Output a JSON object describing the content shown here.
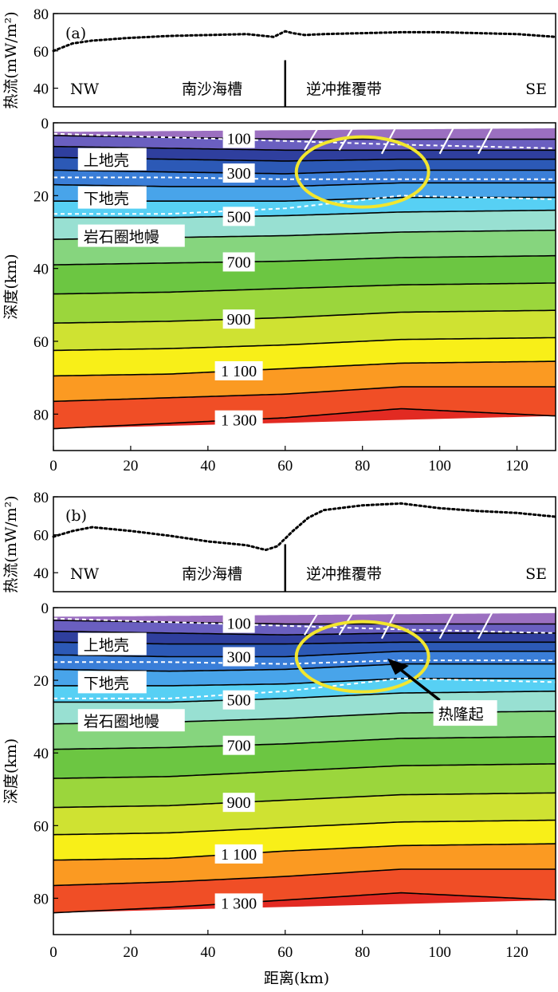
{
  "chart_data": [
    {
      "type": "heatmap",
      "panel_label": "(a)",
      "heat_flow": {
        "ylabel": "热流(mW/m²)",
        "ylim": [
          30,
          80
        ],
        "yticks": [
          40,
          60,
          80
        ],
        "x": [
          0,
          5,
          10,
          20,
          30,
          40,
          50,
          57,
          60,
          62,
          65,
          70,
          80,
          90,
          100,
          110,
          120,
          130
        ],
        "values": [
          60,
          64,
          65.5,
          67,
          68,
          68.5,
          69,
          67.5,
          70.5,
          69.5,
          68.5,
          69,
          69.5,
          70,
          70,
          69.5,
          69,
          67.5
        ],
        "labels": {
          "nw": "NW",
          "left_region": "南沙海槽",
          "right_region": "逆冲推覆带",
          "se": "SE"
        },
        "divider_x": 60
      },
      "section": {
        "ylabel": "深度(km)",
        "xlim": [
          0,
          130
        ],
        "ylim": [
          0,
          90
        ],
        "xticks": [
          0,
          20,
          40,
          60,
          80,
          100,
          120
        ],
        "yticks": [
          0,
          20,
          40,
          60,
          80
        ],
        "isotherms": [
          {
            "label": "100",
            "x": [
              0,
              30,
              60,
              90,
              130
            ],
            "depth": [
              3.5,
              4,
              4.5,
              4.5,
              4.5
            ],
            "label_x": 48
          },
          {
            "label": "",
            "x": [
              0,
              30,
              60,
              90,
              130
            ],
            "depth": [
              6.5,
              7,
              7.5,
              7.5,
              7.5
            ],
            "label_x": 0
          },
          {
            "label": "",
            "x": [
              0,
              30,
              60,
              90,
              130
            ],
            "depth": [
              9.5,
              10,
              10.5,
              10,
              10
            ],
            "label_x": 0
          },
          {
            "label": "300",
            "x": [
              0,
              30,
              60,
              90,
              130
            ],
            "depth": [
              13,
              13.5,
              14,
              13,
              13
            ],
            "label_x": 48
          },
          {
            "label": "",
            "x": [
              0,
              30,
              60,
              90,
              130
            ],
            "depth": [
              17,
              17.5,
              17.5,
              16.5,
              16.5
            ],
            "label_x": 0
          },
          {
            "label": "",
            "x": [
              0,
              30,
              60,
              90,
              130
            ],
            "depth": [
              21.5,
              21.5,
              21.5,
              20.5,
              20.5
            ],
            "label_x": 0
          },
          {
            "label": "500",
            "x": [
              0,
              30,
              60,
              90,
              130
            ],
            "depth": [
              26,
              26,
              25.5,
              24.5,
              24
            ],
            "label_x": 48
          },
          {
            "label": "",
            "x": [
              0,
              30,
              60,
              90,
              130
            ],
            "depth": [
              32,
              31.5,
              31,
              30,
              29.5
            ],
            "label_x": 0
          },
          {
            "label": "700",
            "x": [
              0,
              30,
              60,
              90,
              130
            ],
            "depth": [
              39,
              38.5,
              38,
              37,
              36.5
            ],
            "label_x": 48
          },
          {
            "label": "",
            "x": [
              0,
              30,
              60,
              90,
              130
            ],
            "depth": [
              47,
              46.5,
              45.5,
              44.5,
              44
            ],
            "label_x": 0
          },
          {
            "label": "900",
            "x": [
              0,
              30,
              60,
              90,
              130
            ],
            "depth": [
              55,
              54.5,
              53.5,
              52,
              51.5
            ],
            "label_x": 48
          },
          {
            "label": "",
            "x": [
              0,
              30,
              60,
              90,
              130
            ],
            "depth": [
              62.5,
              62,
              61,
              59.5,
              59
            ],
            "label_x": 0
          },
          {
            "label": "1 100",
            "x": [
              0,
              30,
              60,
              90,
              130
            ],
            "depth": [
              69.5,
              69,
              67.5,
              66,
              65.5
            ],
            "label_x": 48
          },
          {
            "label": "",
            "x": [
              0,
              30,
              60,
              90,
              130
            ],
            "depth": [
              76.5,
              75.5,
              74.5,
              72.5,
              72.5
            ],
            "label_x": 0
          },
          {
            "label": "1 300",
            "x": [
              0,
              30,
              60,
              90,
              130
            ],
            "depth": [
              84,
              82.5,
              81,
              78.5,
              80.5
            ],
            "label_x": 48
          }
        ],
        "bands": [
          "#9b6fc0",
          "#6a5fc0",
          "#2f3f9e",
          "#2c59b6",
          "#3a7ed8",
          "#48a4ea",
          "#57d0f4",
          "#98e0d2",
          "#86d57e",
          "#6cc642",
          "#9bd63c",
          "#cfe232",
          "#f8ef18",
          "#fb9a22",
          "#f04e26",
          "#e22a22"
        ],
        "boundaries": [
          {
            "x": [
              0,
              30,
              60,
              90,
              130
            ],
            "depth": [
              3,
              4,
              5,
              6,
              7
            ]
          },
          {
            "x": [
              0,
              30,
              60,
              90,
              130
            ],
            "depth": [
              15,
              15,
              15.5,
              15.5,
              15.5
            ]
          },
          {
            "x": [
              0,
              30,
              60,
              90,
              130
            ],
            "depth": [
              25,
              25,
              23.5,
              20,
              21
            ]
          }
        ],
        "layer_labels": [
          "上地壳",
          "下地壳",
          "岩石圈地幔"
        ]
      },
      "xlabel": ""
    },
    {
      "type": "heatmap",
      "panel_label": "(b)",
      "heat_flow": {
        "ylabel": "热流(mW/m²)",
        "ylim": [
          30,
          80
        ],
        "yticks": [
          40,
          60,
          80
        ],
        "x": [
          0,
          5,
          10,
          20,
          30,
          40,
          50,
          55,
          58,
          60,
          62,
          66,
          70,
          80,
          90,
          100,
          110,
          120,
          130
        ],
        "values": [
          59,
          62,
          64,
          62,
          59.5,
          56.5,
          54.5,
          52,
          54,
          58,
          62,
          69,
          73,
          75.5,
          76.5,
          74,
          72.5,
          71.5,
          69.5
        ],
        "labels": {
          "nw": "NW",
          "left_region": "南沙海槽",
          "right_region": "逆冲推覆带",
          "se": "SE"
        },
        "divider_x": 60
      },
      "section": {
        "ylabel": "深度(km)",
        "xlim": [
          0,
          130
        ],
        "ylim": [
          0,
          90
        ],
        "xticks": [
          0,
          20,
          40,
          60,
          80,
          100,
          120
        ],
        "yticks": [
          0,
          20,
          40,
          60,
          80
        ],
        "isotherms": [
          {
            "label": "100",
            "x": [
              0,
              30,
              60,
              90,
              130
            ],
            "depth": [
              3.5,
              4,
              4.5,
              4.5,
              4.5
            ],
            "label_x": 48
          },
          {
            "label": "",
            "x": [
              0,
              30,
              60,
              90,
              130
            ],
            "depth": [
              6.5,
              7,
              7.5,
              7,
              7
            ]
          },
          {
            "label": "",
            "x": [
              0,
              30,
              60,
              90,
              130
            ],
            "depth": [
              9.5,
              10,
              10,
              9.5,
              9.5
            ]
          },
          {
            "label": "300",
            "x": [
              0,
              30,
              60,
              90,
              130
            ],
            "depth": [
              13,
              13.5,
              13.5,
              12,
              12
            ],
            "label_x": 48
          },
          {
            "label": "",
            "x": [
              0,
              30,
              60,
              90,
              130
            ],
            "depth": [
              17,
              17.5,
              17,
              15.5,
              15.5
            ]
          },
          {
            "label": "",
            "x": [
              0,
              30,
              60,
              90,
              130
            ],
            "depth": [
              21.5,
              21.5,
              21,
              19.5,
              19.5
            ]
          },
          {
            "label": "500",
            "x": [
              0,
              30,
              60,
              90,
              130
            ],
            "depth": [
              26,
              26,
              25,
              23.5,
              23
            ],
            "label_x": 48
          },
          {
            "label": "",
            "x": [
              0,
              30,
              60,
              90,
              130
            ],
            "depth": [
              32,
              31.5,
              30.5,
              29,
              28.5
            ]
          },
          {
            "label": "700",
            "x": [
              0,
              30,
              60,
              90,
              130
            ],
            "depth": [
              39,
              38.5,
              37.5,
              36,
              35.5
            ],
            "label_x": 48
          },
          {
            "label": "",
            "x": [
              0,
              30,
              60,
              90,
              130
            ],
            "depth": [
              47,
              46.5,
              45,
              43.5,
              43
            ]
          },
          {
            "label": "900",
            "x": [
              0,
              30,
              60,
              90,
              130
            ],
            "depth": [
              55,
              54.5,
              53,
              51.5,
              51
            ],
            "label_x": 48
          },
          {
            "label": "",
            "x": [
              0,
              30,
              60,
              90,
              130
            ],
            "depth": [
              62.5,
              62,
              60.5,
              59,
              58.5
            ]
          },
          {
            "label": "1 100",
            "x": [
              0,
              30,
              60,
              90,
              130
            ],
            "depth": [
              69.5,
              69,
              67,
              65.5,
              65
            ],
            "label_x": 48
          },
          {
            "label": "",
            "x": [
              0,
              30,
              60,
              90,
              130
            ],
            "depth": [
              76.5,
              75.5,
              74,
              72,
              72
            ]
          },
          {
            "label": "1 300",
            "x": [
              0,
              30,
              60,
              90,
              130
            ],
            "depth": [
              84,
              82.5,
              80.5,
              78.5,
              80.5
            ],
            "label_x": 48
          }
        ],
        "bands": [
          "#9b6fc0",
          "#6a5fc0",
          "#2f3f9e",
          "#2c59b6",
          "#3a7ed8",
          "#48a4ea",
          "#57d0f4",
          "#98e0d2",
          "#86d57e",
          "#6cc642",
          "#9bd63c",
          "#cfe232",
          "#f8ef18",
          "#fb9a22",
          "#f04e26",
          "#e22a22"
        ],
        "boundaries": [
          {
            "x": [
              0,
              30,
              60,
              90,
              130
            ],
            "depth": [
              3,
              4,
              5,
              6,
              7
            ]
          },
          {
            "x": [
              0,
              30,
              60,
              90,
              130
            ],
            "depth": [
              15,
              15,
              15.5,
              14.5,
              14.5
            ]
          },
          {
            "x": [
              0,
              30,
              60,
              90,
              130
            ],
            "depth": [
              25,
              25,
              23,
              19.5,
              20.5
            ]
          }
        ],
        "layer_labels": [
          "上地壳",
          "下地壳",
          "岩石圈地幔"
        ],
        "annotation": "热隆起"
      },
      "xlabel": "距离(km)"
    }
  ]
}
